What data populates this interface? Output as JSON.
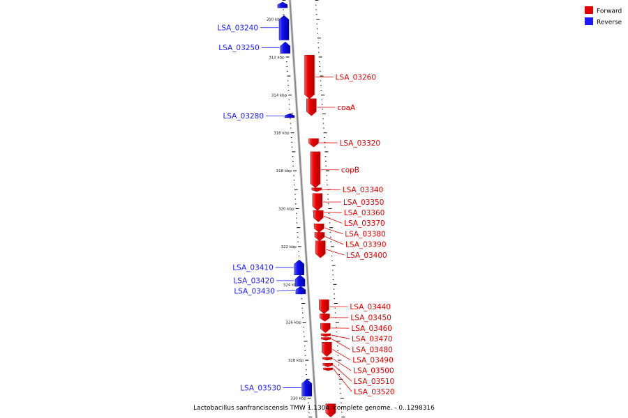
{
  "caption": "Lactobacillus sanfranciscensis TMW 1.1304, complete genome. - 0..1298316",
  "legend": [
    {
      "label": "Forward",
      "color": "#e00000"
    },
    {
      "label": "Reverse",
      "color": "#1a1aff"
    }
  ],
  "colors": {
    "forward": "#e00000",
    "reverse": "#1a1aff",
    "backbone": "#888888"
  },
  "ticks": [
    {
      "kbp": 310,
      "label": "310 kbp"
    },
    {
      "kbp": 312,
      "label": "312 kbp"
    },
    {
      "kbp": 314,
      "label": "314 kbp"
    },
    {
      "kbp": 316,
      "label": "316 kbp"
    },
    {
      "kbp": 318,
      "label": "318 kbp"
    },
    {
      "kbp": 320,
      "label": "320 kbp"
    },
    {
      "kbp": 322,
      "label": "322 kbp"
    },
    {
      "kbp": 324,
      "label": "324 kbp"
    },
    {
      "kbp": 326,
      "label": "326 kbp"
    },
    {
      "kbp": 328,
      "label": "328 kbp"
    },
    {
      "kbp": 330,
      "label": "330 kbp"
    }
  ],
  "genes": [
    {
      "name": "",
      "strand": "reverse",
      "start": 309.1,
      "end": 309.4
    },
    {
      "name": "LSA_03240",
      "strand": "reverse",
      "start": 309.8,
      "end": 311.1
    },
    {
      "name": "LSA_03250",
      "strand": "reverse",
      "start": 311.2,
      "end": 311.8
    },
    {
      "name": "LSA_03260",
      "strand": "forward",
      "start": 311.9,
      "end": 314.2
    },
    {
      "name": "coaA",
      "strand": "forward",
      "start": 314.2,
      "end": 315.1
    },
    {
      "name": "LSA_03280",
      "strand": "reverse",
      "start": 315.0,
      "end": 315.2
    },
    {
      "name": "LSA_03320",
      "strand": "forward",
      "start": 316.3,
      "end": 316.75
    },
    {
      "name": "copB",
      "strand": "forward",
      "start": 317.0,
      "end": 318.9
    },
    {
      "name": "LSA_03340",
      "strand": "forward",
      "start": 318.9,
      "end": 319.1
    },
    {
      "name": "LSA_03350",
      "strand": "forward",
      "start": 319.2,
      "end": 320.1
    },
    {
      "name": "LSA_03360",
      "strand": "forward",
      "start": 320.1,
      "end": 320.25
    },
    {
      "name": "LSA_03370",
      "strand": "forward",
      "start": 320.1,
      "end": 320.7
    },
    {
      "name": "LSA_03380",
      "strand": "forward",
      "start": 320.8,
      "end": 321.25
    },
    {
      "name": "LSA_03390",
      "strand": "forward",
      "start": 321.25,
      "end": 321.7
    },
    {
      "name": "LSA_03400",
      "strand": "forward",
      "start": 321.7,
      "end": 322.6
    },
    {
      "name": "LSA_03410",
      "strand": "reverse",
      "start": 322.7,
      "end": 323.5
    },
    {
      "name": "LSA_03420",
      "strand": "reverse",
      "start": 323.5,
      "end": 324.1
    },
    {
      "name": "LSA_03430",
      "strand": "reverse",
      "start": 324.1,
      "end": 324.5
    },
    {
      "name": "LSA_03440",
      "strand": "forward",
      "start": 324.8,
      "end": 325.55
    },
    {
      "name": "LSA_03450",
      "strand": "forward",
      "start": 325.55,
      "end": 325.95
    },
    {
      "name": "LSA_03460",
      "strand": "forward",
      "start": 326.05,
      "end": 326.55
    },
    {
      "name": "LSA_03470",
      "strand": "forward",
      "start": 326.6,
      "end": 326.75
    },
    {
      "name": "LSA_03480",
      "strand": "forward",
      "start": 326.8,
      "end": 326.95
    },
    {
      "name": "LSA_03490",
      "strand": "forward",
      "start": 327.05,
      "end": 327.8
    },
    {
      "name": "LSA_03500",
      "strand": "forward",
      "start": 327.85,
      "end": 328.0
    },
    {
      "name": "LSA_03510",
      "strand": "forward",
      "start": 328.15,
      "end": 328.35
    },
    {
      "name": "LSA_03520",
      "strand": "forward",
      "start": 328.4,
      "end": 328.55
    },
    {
      "name": "LSA_03530",
      "strand": "reverse",
      "start": 329.0,
      "end": 329.9
    },
    {
      "name": "",
      "strand": "forward",
      "start": 330.3,
      "end": 331.0
    }
  ]
}
